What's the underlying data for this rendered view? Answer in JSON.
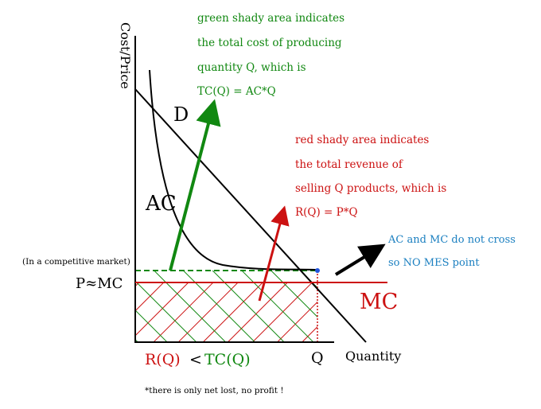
{
  "axes": {
    "y_label": "Cost/Price",
    "x_label": "Quantity",
    "q_label": "Q",
    "p_label": "P≈MC",
    "market_note": "(In a competitive market)"
  },
  "curves": {
    "demand_label": "D",
    "ac_label": "AC",
    "mc_label": "MC"
  },
  "notes": {
    "green": [
      "green shady area indicates",
      "the total cost of producing",
      "quantity Q, which is",
      "TC(Q) = AC*Q"
    ],
    "red": [
      "red shady area indicates",
      "the total revenue of",
      "selling Q products, which is",
      "R(Q) = P*Q"
    ],
    "blue": [
      "AC and MC do not cross",
      "so NO MES point"
    ]
  },
  "bottom": {
    "rq": "R(Q)",
    "lt": "<",
    "tcq": "TC(Q)",
    "footnote": "*there is only net lost, no profit !"
  },
  "colors": {
    "green": "#118811",
    "red": "#cc1111",
    "blue": "#1a7fc0",
    "black": "#000000",
    "point": "#2255dd"
  }
}
